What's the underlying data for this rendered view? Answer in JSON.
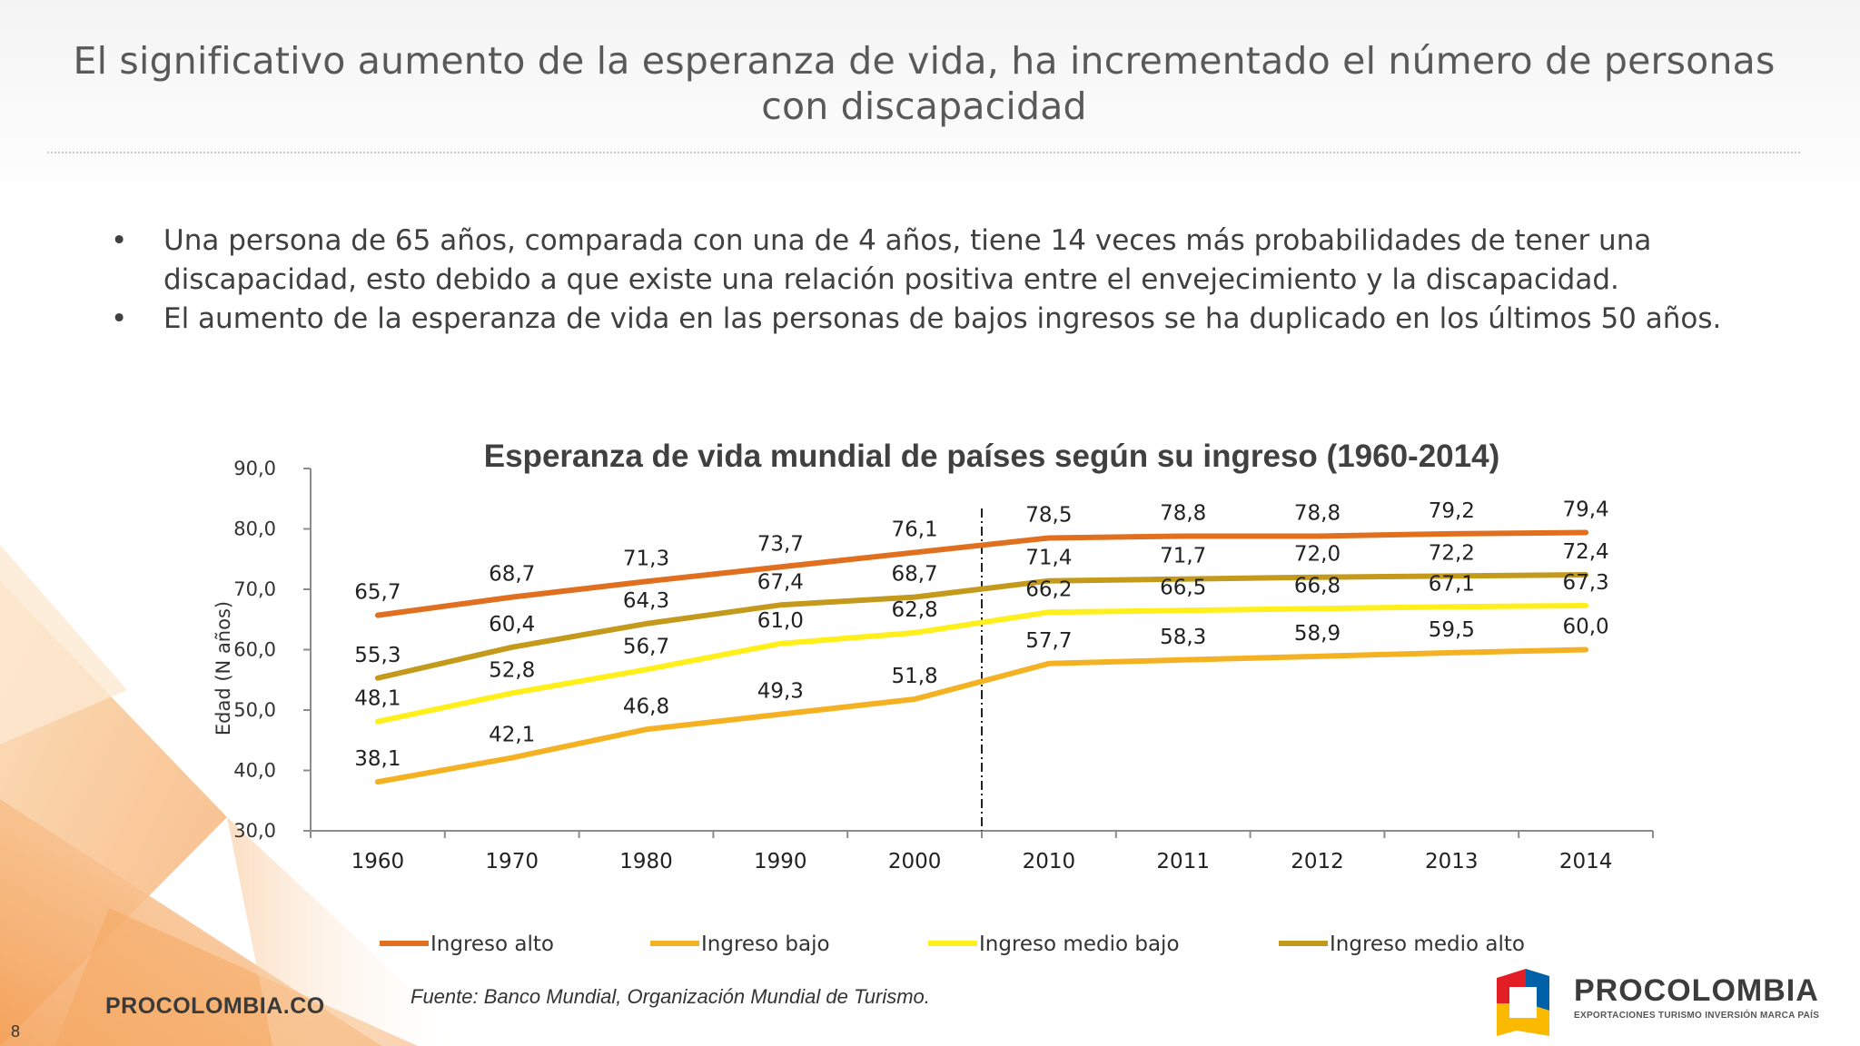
{
  "slide": {
    "title": "El significativo aumento de la esperanza de vida, ha incrementado el número de personas con discapacidad",
    "bullets": [
      "Una persona de 65 años, comparada con una de 4 años, tiene 14 veces más probabilidades de tener una discapacidad, esto debido a que existe una relación positiva entre el envejecimiento y la discapacidad.",
      "El aumento de la esperanza de vida en las personas de bajos ingresos se ha duplicado en los últimos 50 años."
    ],
    "bullet_glyph": "•",
    "source": "Fuente: Banco Mundial, Organización Mundial de Turismo.",
    "footer_url": "PROCOLOMBIA.CO",
    "page_number": "8",
    "logo": {
      "name": "PROCOLOMBIA",
      "tagline": "EXPORTACIONES TURISMO INVERSIÓN MARCA PAÍS",
      "colors": [
        "#e31e24",
        "#0061a8",
        "#fbba00"
      ]
    }
  },
  "chart_data": {
    "type": "line",
    "title": "Esperanza de vida mundial de países según su ingreso (1960-2014)",
    "ylabel": "Edad (N años)",
    "xlabel": "",
    "ylim": [
      30,
      90
    ],
    "yticks": [
      "30,0",
      "40,0",
      "50,0",
      "60,0",
      "70,0",
      "80,0",
      "90,0"
    ],
    "yticks_values": [
      30,
      40,
      50,
      60,
      70,
      80,
      90
    ],
    "categories": [
      "1960",
      "1970",
      "1980",
      "1990",
      "2000",
      "2010",
      "2011",
      "2012",
      "2013",
      "2014"
    ],
    "divider_between": [
      "2000",
      "2010"
    ],
    "legend_position": "bottom",
    "grid": false,
    "series": [
      {
        "name": "Ingreso alto",
        "color": "#e07020",
        "values": [
          65.7,
          68.7,
          71.3,
          73.7,
          76.1,
          78.5,
          78.8,
          78.8,
          79.2,
          79.4
        ],
        "labels": [
          "65,7",
          "68,7",
          "71,3",
          "73,7",
          "76,1",
          "78,5",
          "78,8",
          "78,8",
          "79,2",
          "79,4"
        ]
      },
      {
        "name": "Ingreso bajo",
        "color": "#f4b223",
        "values": [
          38.1,
          42.1,
          46.8,
          49.3,
          51.8,
          57.7,
          58.3,
          58.9,
          59.5,
          60.0
        ],
        "labels": [
          "38,1",
          "42,1",
          "46,8",
          "49,3",
          "51,8",
          "57,7",
          "58,3",
          "58,9",
          "59,5",
          "60,0"
        ]
      },
      {
        "name": "Ingreso medio bajo",
        "color": "#ffef1a",
        "values": [
          48.1,
          52.8,
          56.7,
          61.0,
          62.8,
          66.2,
          66.5,
          66.8,
          67.1,
          67.3
        ],
        "labels": [
          "48,1",
          "52,8",
          "56,7",
          "61,0",
          "62,8",
          "66,2",
          "66,5",
          "66,8",
          "67,1",
          "67,3"
        ]
      },
      {
        "name": "Ingreso medio alto",
        "color": "#c49a1c",
        "values": [
          55.3,
          60.4,
          64.3,
          67.4,
          68.7,
          71.4,
          71.7,
          72.0,
          72.2,
          72.4
        ],
        "labels": [
          "55,3",
          "60,4",
          "64,3",
          "67,4",
          "68,7",
          "71,4",
          "71,7",
          "72,0",
          "72,2",
          "72,4"
        ]
      }
    ]
  }
}
